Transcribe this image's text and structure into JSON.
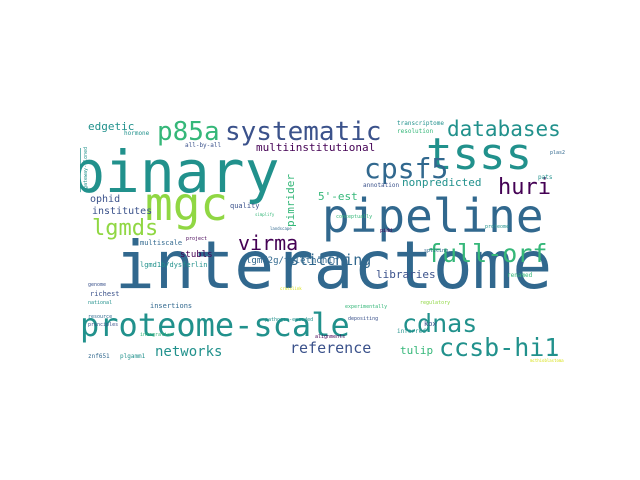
{
  "palette": {
    "dark_purple": "#440154",
    "indigo": "#3b528b",
    "blue": "#31688e",
    "teal": "#21918c",
    "green": "#35b779",
    "lime": "#90d743",
    "yellow": "#d8e219"
  },
  "words": [
    "interactome",
    "binary",
    "pipeline",
    "mgc",
    "tsss",
    "proteome-scale",
    "systematic",
    "p85a",
    "databases",
    "cpsf5",
    "full-orf",
    "lgmds",
    "virma",
    "cdnas",
    "ccsb-hi1",
    "huri",
    "stitching",
    "reference",
    "networks",
    "nonpredicted",
    "multiinstitutional",
    "libraries",
    "pimrider",
    "5'-est",
    "institutes",
    "ophid",
    "edgetic",
    "lgmd2g/telethonin",
    "stubls",
    "lgmd1b/dysferlin",
    "tulip",
    "multiscale",
    "quality",
    "transcriptome",
    "resolution",
    "annotation",
    "inferred",
    "richest",
    "insertions",
    "gateway-cloned",
    "hormone",
    "all-by-all",
    "kox",
    "znf651",
    "plgamm1",
    "pathogen-encoded",
    "alignments",
    "experimentally",
    "depositing",
    "mcthioblastoma",
    "pats",
    "plas2",
    "renamed",
    "project",
    "simplify",
    "regulatory",
    "conceptually",
    "landscape",
    "splicing",
    "pidd",
    "proteome",
    "genome",
    "resource",
    "national",
    "crosslink",
    "principles",
    "integration"
  ]
}
